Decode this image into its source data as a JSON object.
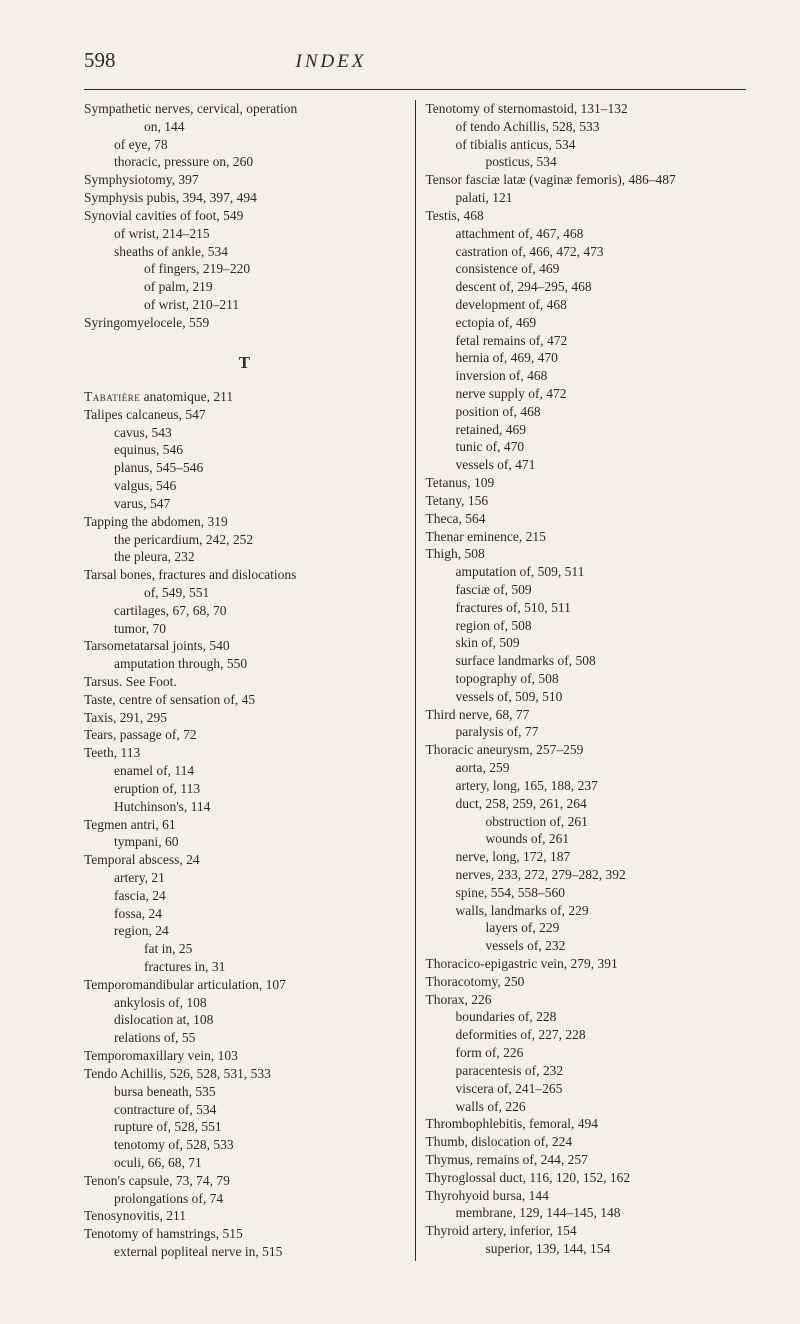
{
  "header": {
    "page_number": "598",
    "running_head": "INDEX"
  },
  "section_letter": "T",
  "left_column": [
    {
      "t": "Sympathetic nerves, cervical, operation",
      "i": 0
    },
    {
      "t": "on, 144",
      "i": 2
    },
    {
      "t": "of eye, 78",
      "i": 1
    },
    {
      "t": "thoracic, pressure on, 260",
      "i": 1
    },
    {
      "t": "Symphysiotomy, 397",
      "i": 0
    },
    {
      "t": "Symphysis pubis, 394, 397, 494",
      "i": 0
    },
    {
      "t": "Synovial cavities of foot, 549",
      "i": 0
    },
    {
      "t": "of wrist, 214–215",
      "i": 1
    },
    {
      "t": "sheaths of ankle, 534",
      "i": 1
    },
    {
      "t": "of fingers, 219–220",
      "i": 2
    },
    {
      "t": "of palm, 219",
      "i": 2
    },
    {
      "t": "of wrist, 210–211",
      "i": 2
    },
    {
      "t": "Syringomyelocele, 559",
      "i": 0
    },
    {
      "t": "__SECTION_T__",
      "i": 0
    },
    {
      "t": "Tabatière anatomique, 211",
      "i": 0,
      "sc": true
    },
    {
      "t": "Talipes calcaneus, 547",
      "i": 0
    },
    {
      "t": "cavus, 543",
      "i": 1
    },
    {
      "t": "equinus, 546",
      "i": 1
    },
    {
      "t": "planus, 545–546",
      "i": 1
    },
    {
      "t": "valgus, 546",
      "i": 1
    },
    {
      "t": "varus, 547",
      "i": 1
    },
    {
      "t": "Tapping the abdomen, 319",
      "i": 0
    },
    {
      "t": "the pericardium, 242, 252",
      "i": 1
    },
    {
      "t": "the pleura, 232",
      "i": 1
    },
    {
      "t": "Tarsal bones, fractures and dislocations",
      "i": 0
    },
    {
      "t": "of, 549, 551",
      "i": 2
    },
    {
      "t": "cartilages, 67, 68, 70",
      "i": 1
    },
    {
      "t": "tumor, 70",
      "i": 1
    },
    {
      "t": "Tarsometatarsal joints, 540",
      "i": 0
    },
    {
      "t": "amputation through, 550",
      "i": 1
    },
    {
      "t": "Tarsus. See Foot.",
      "i": 0
    },
    {
      "t": "Taste, centre of sensation of, 45",
      "i": 0
    },
    {
      "t": "Taxis, 291, 295",
      "i": 0
    },
    {
      "t": "Tears, passage of, 72",
      "i": 0
    },
    {
      "t": "Teeth, 113",
      "i": 0
    },
    {
      "t": "enamel of, 114",
      "i": 1
    },
    {
      "t": "eruption of, 113",
      "i": 1
    },
    {
      "t": "Hutchinson's, 114",
      "i": 1
    },
    {
      "t": "Tegmen antri, 61",
      "i": 0
    },
    {
      "t": "tympani, 60",
      "i": 1
    },
    {
      "t": "Temporal abscess, 24",
      "i": 0
    },
    {
      "t": "artery, 21",
      "i": 1
    },
    {
      "t": "fascia, 24",
      "i": 1
    },
    {
      "t": "fossa, 24",
      "i": 1
    },
    {
      "t": "region, 24",
      "i": 1
    },
    {
      "t": "fat in, 25",
      "i": 2
    },
    {
      "t": "fractures in, 31",
      "i": 2
    },
    {
      "t": "Temporomandibular articulation, 107",
      "i": 0
    },
    {
      "t": "ankylosis of, 108",
      "i": 1
    },
    {
      "t": "dislocation at, 108",
      "i": 1
    },
    {
      "t": "relations of, 55",
      "i": 1
    },
    {
      "t": "Temporomaxillary vein, 103",
      "i": 0
    },
    {
      "t": "Tendo Achillis, 526, 528, 531, 533",
      "i": 0
    },
    {
      "t": "bursa beneath, 535",
      "i": 1
    },
    {
      "t": "contracture of, 534",
      "i": 1
    },
    {
      "t": "rupture of, 528, 551",
      "i": 1
    },
    {
      "t": "tenotomy of, 528, 533",
      "i": 1
    },
    {
      "t": "oculi, 66, 68, 71",
      "i": 1
    },
    {
      "t": "Tenon's capsule, 73, 74, 79",
      "i": 0
    },
    {
      "t": "prolongations of, 74",
      "i": 1
    },
    {
      "t": "Tenosynovitis, 211",
      "i": 0
    },
    {
      "t": "Tenotomy of hamstrings, 515",
      "i": 0
    },
    {
      "t": "external popliteal nerve in, 515",
      "i": 1
    }
  ],
  "right_column": [
    {
      "t": "Tenotomy of sternomastoid, 131–132",
      "i": 0
    },
    {
      "t": "of tendo Achillis, 528, 533",
      "i": 1
    },
    {
      "t": "of tibialis anticus, 534",
      "i": 1
    },
    {
      "t": "posticus, 534",
      "i": 2
    },
    {
      "t": "Tensor fasciæ latæ (vaginæ femoris), 486–487",
      "i": 0
    },
    {
      "t": "palati, 121",
      "i": 1
    },
    {
      "t": "Testis, 468",
      "i": 0
    },
    {
      "t": "attachment of, 467, 468",
      "i": 1
    },
    {
      "t": "castration of, 466, 472, 473",
      "i": 1
    },
    {
      "t": "consistence of, 469",
      "i": 1
    },
    {
      "t": "descent of, 294–295, 468",
      "i": 1
    },
    {
      "t": "development of, 468",
      "i": 1
    },
    {
      "t": "ectopia of, 469",
      "i": 1
    },
    {
      "t": "fetal remains of, 472",
      "i": 1
    },
    {
      "t": "hernia of, 469, 470",
      "i": 1
    },
    {
      "t": "inversion of, 468",
      "i": 1
    },
    {
      "t": "nerve supply of, 472",
      "i": 1
    },
    {
      "t": "position of, 468",
      "i": 1
    },
    {
      "t": "retained, 469",
      "i": 1
    },
    {
      "t": "tunic of, 470",
      "i": 1
    },
    {
      "t": "vessels of, 471",
      "i": 1
    },
    {
      "t": "Tetanus, 109",
      "i": 0
    },
    {
      "t": "Tetany, 156",
      "i": 0
    },
    {
      "t": "Theca, 564",
      "i": 0
    },
    {
      "t": "Thenar eminence, 215",
      "i": 0
    },
    {
      "t": "Thigh, 508",
      "i": 0
    },
    {
      "t": "amputation of, 509, 511",
      "i": 1
    },
    {
      "t": "fasciæ of, 509",
      "i": 1
    },
    {
      "t": "fractures of, 510, 511",
      "i": 1
    },
    {
      "t": "region of, 508",
      "i": 1
    },
    {
      "t": "skin of, 509",
      "i": 1
    },
    {
      "t": "surface landmarks of, 508",
      "i": 1
    },
    {
      "t": "topography of, 508",
      "i": 1
    },
    {
      "t": "vessels of, 509, 510",
      "i": 1
    },
    {
      "t": "Third nerve, 68, 77",
      "i": 0
    },
    {
      "t": "paralysis of, 77",
      "i": 1
    },
    {
      "t": "Thoracic aneurysm, 257–259",
      "i": 0
    },
    {
      "t": "aorta, 259",
      "i": 1
    },
    {
      "t": "artery, long, 165, 188, 237",
      "i": 1
    },
    {
      "t": "duct, 258, 259, 261, 264",
      "i": 1
    },
    {
      "t": "obstruction of, 261",
      "i": 2
    },
    {
      "t": "wounds of, 261",
      "i": 2
    },
    {
      "t": "nerve, long, 172, 187",
      "i": 1
    },
    {
      "t": "nerves, 233, 272, 279–282, 392",
      "i": 1
    },
    {
      "t": "spine, 554, 558–560",
      "i": 1
    },
    {
      "t": "walls, landmarks of, 229",
      "i": 1
    },
    {
      "t": "layers of, 229",
      "i": 2
    },
    {
      "t": "vessels of, 232",
      "i": 2
    },
    {
      "t": "Thoracico-epigastric vein, 279, 391",
      "i": 0
    },
    {
      "t": "Thoracotomy, 250",
      "i": 0
    },
    {
      "t": "Thorax, 226",
      "i": 0
    },
    {
      "t": "boundaries of, 228",
      "i": 1
    },
    {
      "t": "deformities of, 227, 228",
      "i": 1
    },
    {
      "t": "form of, 226",
      "i": 1
    },
    {
      "t": "paracentesis of, 232",
      "i": 1
    },
    {
      "t": "viscera of, 241–265",
      "i": 1
    },
    {
      "t": "walls of, 226",
      "i": 1
    },
    {
      "t": "Thrombophlebitis, femoral, 494",
      "i": 0
    },
    {
      "t": "Thumb, dislocation of, 224",
      "i": 0
    },
    {
      "t": "Thymus, remains of, 244, 257",
      "i": 0
    },
    {
      "t": "Thyroglossal duct, 116, 120, 152, 162",
      "i": 0
    },
    {
      "t": "Thyrohyoid bursa, 144",
      "i": 0
    },
    {
      "t": "membrane, 129, 144–145, 148",
      "i": 1
    },
    {
      "t": "Thyroid artery, inferior, 154",
      "i": 0
    },
    {
      "t": "superior, 139, 144, 154",
      "i": 2
    }
  ]
}
